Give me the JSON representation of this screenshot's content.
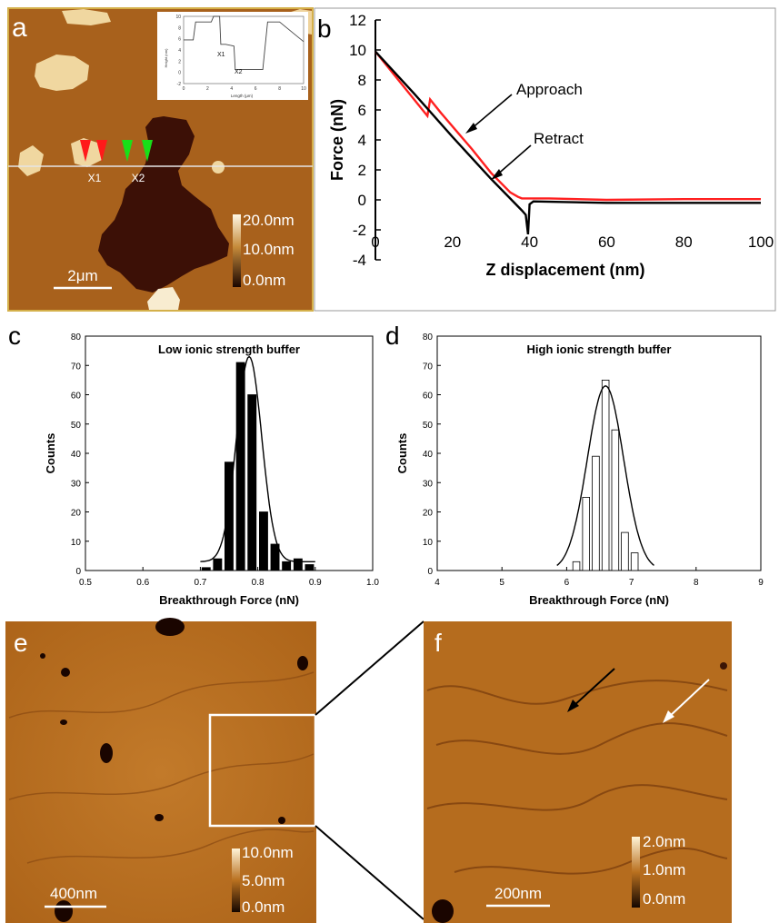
{
  "panels": {
    "a": {
      "letter": "a",
      "markers": [
        "X1",
        "X2"
      ],
      "scale_bar": "2μm",
      "colorbar": [
        "20.0nm",
        "10.0nm",
        "0.0nm"
      ],
      "inset": {
        "ylabel": "Height (nm)",
        "xlabel": "Length (μm)",
        "xticks": [
          "0",
          "2",
          "4",
          "6",
          "8",
          "10"
        ],
        "yticks": [
          "10",
          "8",
          "6",
          "4",
          "2",
          "0",
          "-2"
        ],
        "labels": [
          "X1",
          "X2"
        ],
        "profile_x": [
          0,
          0.3,
          0.8,
          1.0,
          1.2,
          2.3,
          2.5,
          3.0,
          3.1,
          3.5,
          4.2,
          4.3,
          5.5,
          6.0,
          6.1,
          6.6,
          7.0,
          7.2,
          8.0,
          10
        ],
        "profile_y": [
          5.8,
          5.8,
          5.8,
          9.0,
          9.0,
          9.0,
          10.0,
          10.0,
          5.0,
          5.0,
          4.7,
          0.5,
          0.5,
          0.5,
          0.5,
          0.5,
          9.0,
          9.0,
          9.0,
          5.5
        ]
      }
    },
    "b": {
      "letter": "b",
      "annotations": [
        "Approach",
        "Retract"
      ]
    },
    "c": {
      "letter": "c"
    },
    "d": {
      "letter": "d"
    },
    "e": {
      "letter": "e",
      "scale_bar": "400nm",
      "colorbar": [
        "10.0nm",
        "5.0nm",
        "0.0nm"
      ]
    },
    "f": {
      "letter": "f",
      "scale_bar": "200nm",
      "colorbar": [
        "2.0nm",
        "1.0nm",
        "0.0nm"
      ]
    }
  },
  "colors": {
    "approach": "#ff2020",
    "retract": "#000000",
    "afm_a": "#a8611c",
    "afm_ef": "#b9701f",
    "frame_a": "#d4b04a"
  },
  "chart_data": [
    {
      "panel": "b",
      "type": "line",
      "title": "",
      "xlabel": "Z displacement (nm)",
      "ylabel": "Force (nN)",
      "xlim": [
        0,
        100
      ],
      "ylim": [
        -4,
        12
      ],
      "xticks": [
        "0",
        "20",
        "40",
        "60",
        "80",
        "100"
      ],
      "yticks": [
        "12",
        "10",
        "8",
        "6",
        "4",
        "2",
        "0",
        "-2",
        "-4"
      ],
      "series": [
        {
          "name": "Approach",
          "x": [
            0,
            13.5,
            14.2,
            17,
            25,
            30,
            35,
            37,
            38,
            40,
            45,
            60,
            80,
            100
          ],
          "y": [
            9.9,
            5.6,
            6.7,
            5.8,
            3.4,
            1.8,
            0.5,
            0.2,
            0.1,
            0.1,
            0.1,
            0.0,
            0.05,
            0.05
          ]
        },
        {
          "name": "Retract",
          "x": [
            0,
            10,
            20,
            30,
            38,
            39,
            39.6,
            40,
            41,
            60,
            80,
            100
          ],
          "y": [
            9.9,
            7.1,
            4.2,
            1.4,
            -0.7,
            -1.0,
            -2.3,
            -0.3,
            -0.1,
            -0.2,
            -0.2,
            -0.2
          ]
        }
      ]
    },
    {
      "panel": "c",
      "type": "bar",
      "title": "Low ionic strength buffer",
      "xlabel": "Breakthrough Force (nN)",
      "ylabel": "Counts",
      "xlim": [
        0.5,
        1.0
      ],
      "ylim": [
        0,
        80
      ],
      "xticks": [
        "0.5",
        "0.6",
        "0.7",
        "0.8",
        "0.9",
        "1.0"
      ],
      "yticks": [
        "80",
        "70",
        "60",
        "50",
        "40",
        "30",
        "20",
        "10",
        "0"
      ],
      "bar_fill": "black",
      "x": [
        0.71,
        0.73,
        0.75,
        0.77,
        0.79,
        0.81,
        0.83,
        0.85,
        0.87,
        0.89
      ],
      "values": [
        1,
        4,
        37,
        71,
        60,
        20,
        9,
        3,
        4,
        2
      ],
      "fit": {
        "type": "gaussian",
        "center": 0.785,
        "sigma": 0.022,
        "amplitude": 70,
        "range": [
          0.7,
          0.9
        ]
      }
    },
    {
      "panel": "d",
      "type": "bar",
      "title": "High ionic strength buffer",
      "xlabel": "Breakthrough Force (nN)",
      "ylabel": "Counts",
      "xlim": [
        4,
        9
      ],
      "ylim": [
        0,
        80
      ],
      "xticks": [
        "4",
        "5",
        "6",
        "7",
        "8",
        "9"
      ],
      "yticks": [
        "80",
        "70",
        "60",
        "50",
        "40",
        "30",
        "20",
        "10",
        "0"
      ],
      "bar_fill": "white",
      "x": [
        6.15,
        6.3,
        6.45,
        6.6,
        6.75,
        6.9,
        7.05
      ],
      "values": [
        3,
        25,
        39,
        65,
        48,
        13,
        6
      ],
      "fit": {
        "type": "gaussian",
        "center": 6.6,
        "sigma": 0.28,
        "amplitude": 63,
        "range": [
          5.85,
          7.35
        ]
      }
    }
  ]
}
